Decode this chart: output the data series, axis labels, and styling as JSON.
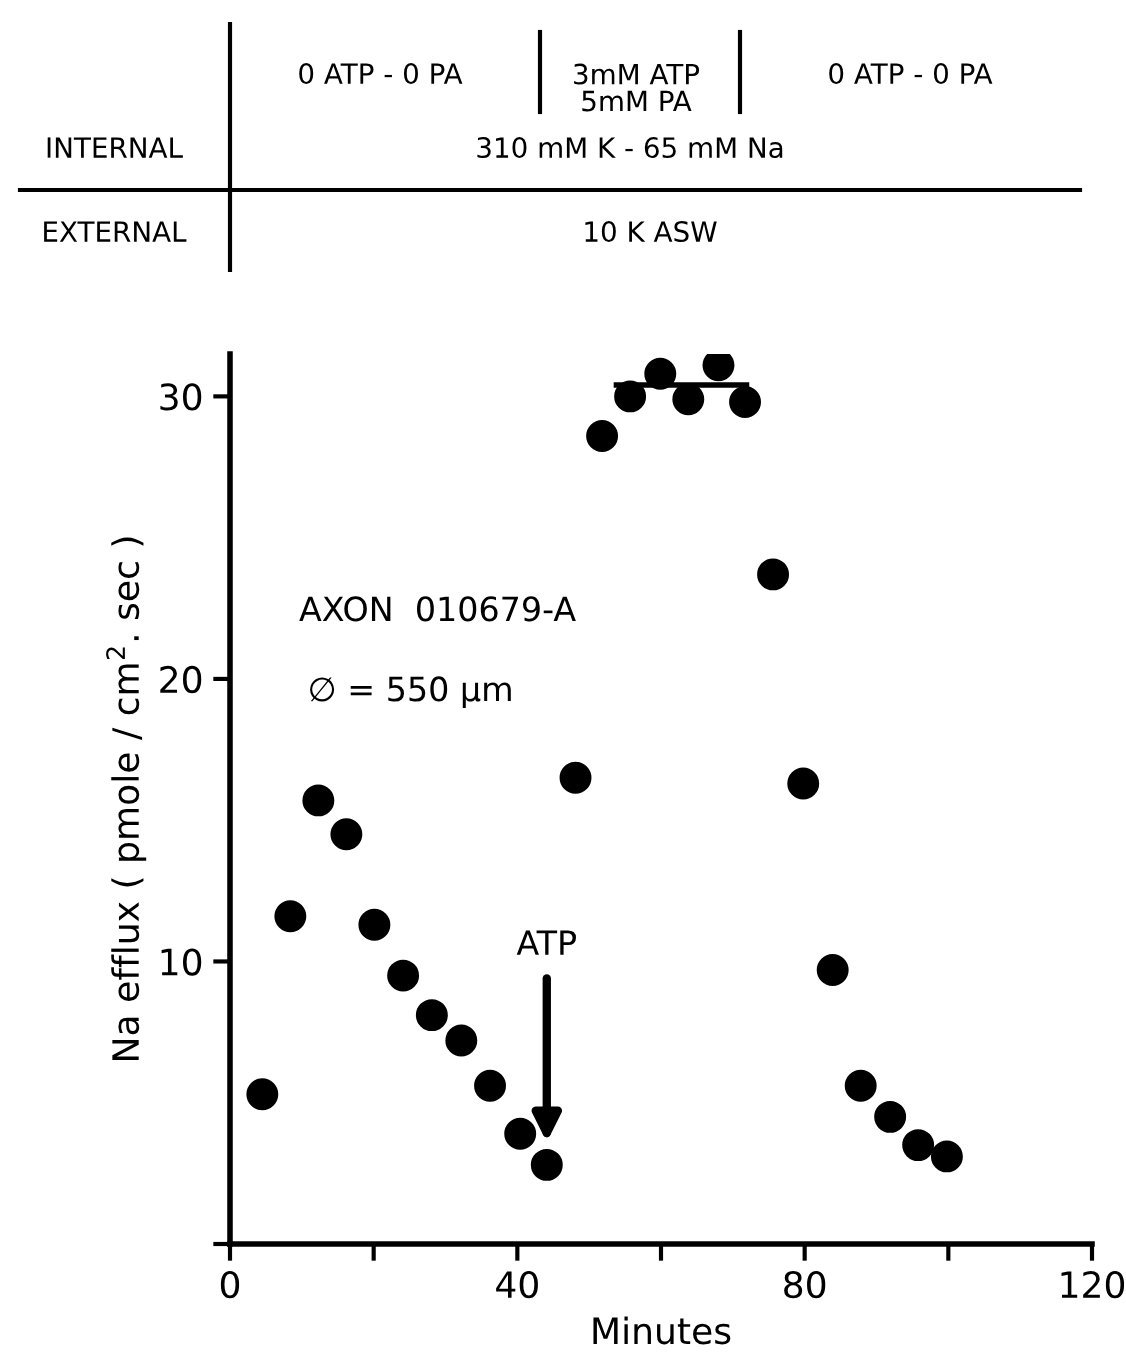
{
  "chart_data": {
    "type": "scatter",
    "xlabel": "Minutes",
    "ylabel": "Na efflux ( pmole / cm$^{2}$. sec )",
    "x": [
      4.5,
      8.4,
      12.3,
      16.2,
      20.1,
      24.1,
      28.1,
      32.2,
      36.2,
      40.4,
      44.1,
      48.1,
      51.8,
      55.7,
      59.9,
      63.8,
      68.0,
      71.7,
      75.6,
      79.8,
      83.9,
      87.8,
      91.9,
      95.8,
      99.8
    ],
    "series": [
      {
        "color": "#000000",
        "marker": "circle",
        "values": [
          5.3,
          11.6,
          15.7,
          14.5,
          11.3,
          9.5,
          8.1,
          7.2,
          5.6,
          3.9,
          2.8,
          16.5,
          28.6,
          30.0,
          30.8,
          29.9,
          31.1,
          29.8,
          23.7,
          16.3,
          9.7,
          5.6,
          4.5,
          3.5,
          3.1
        ]
      },
      {
        "type": "line",
        "color": "#000000",
        "x": [
          53.8,
          71.9
        ],
        "values": [
          30.4,
          30.4
        ],
        "marker": "none",
        "line_style": "solid"
      }
    ],
    "xlim": [
      0,
      120
    ],
    "xticks": [
      0,
      {
        "value": 20,
        "label": null
      },
      40,
      {
        "value": 60,
        "label": null
      },
      80,
      {
        "value": 100,
        "label": null
      },
      120
    ],
    "ylim": [
      0,
      31.5
    ],
    "yticks": [
      {
        "value": 0,
        "label": null
      },
      10,
      20,
      30
    ],
    "grid": false,
    "legend": false,
    "annotations": [
      "INTERNAL",
      "0 ATP - 0 PA",
      "3mM ATP\n5mM PA",
      "0 ATP - 0 PA",
      "310 mM K - 65 mM Na",
      "EXTERNAL",
      "10 K ASW",
      "AXON  010679-A",
      "∅ = 550 μm",
      {
        "text": "ATP",
        "x": 44.1,
        "y": 3.6
      }
    ]
  }
}
